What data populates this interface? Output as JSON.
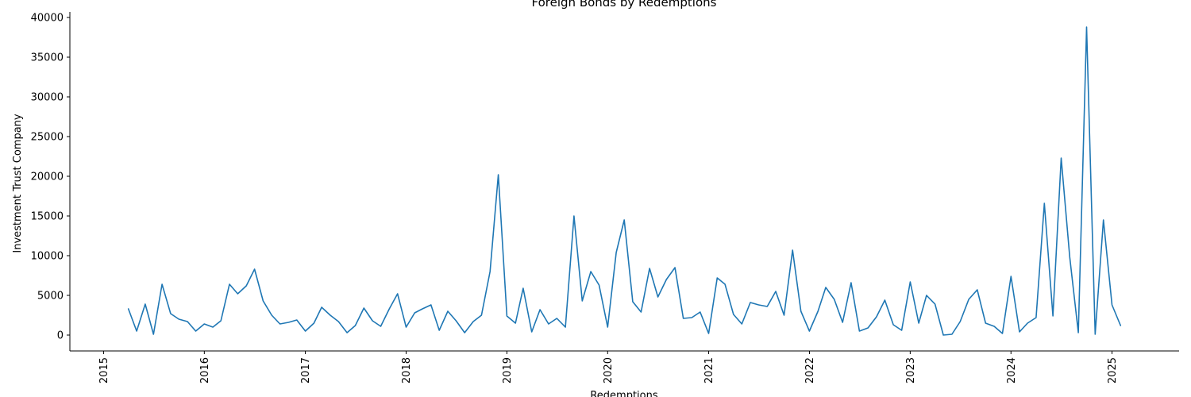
{
  "chart_data": {
    "type": "line",
    "title": "Foreign Bonds by Redemptions",
    "xlabel": "Redemptions",
    "ylabel": "Investment Trust Company",
    "xlim": [
      "2014-09-01",
      "2025-09-01"
    ],
    "ylim": [
      -2000,
      40700
    ],
    "x_ticks": [
      "2015",
      "2016",
      "2017",
      "2018",
      "2019",
      "2020",
      "2021",
      "2022",
      "2023",
      "2024",
      "2025"
    ],
    "y_ticks": [
      0,
      5000,
      10000,
      15000,
      20000,
      25000,
      30000,
      35000,
      40000
    ],
    "grid": false,
    "legend": "none",
    "series": [
      {
        "color": "#1f77b4",
        "x": [
          "2015-04",
          "2015-05",
          "2015-06",
          "2015-07",
          "2015-08",
          "2015-09",
          "2015-10",
          "2015-11",
          "2015-12",
          "2016-01",
          "2016-02",
          "2016-03",
          "2016-04",
          "2016-05",
          "2016-06",
          "2016-07",
          "2016-08",
          "2016-09",
          "2016-10",
          "2016-11",
          "2016-12",
          "2017-01",
          "2017-02",
          "2017-03",
          "2017-04",
          "2017-05",
          "2017-06",
          "2017-07",
          "2017-08",
          "2017-09",
          "2017-10",
          "2017-11",
          "2017-12",
          "2018-01",
          "2018-02",
          "2018-03",
          "2018-04",
          "2018-05",
          "2018-06",
          "2018-07",
          "2018-08",
          "2018-09",
          "2018-10",
          "2018-11",
          "2018-12",
          "2019-01",
          "2019-02",
          "2019-03",
          "2019-04",
          "2019-05",
          "2019-06",
          "2019-07",
          "2019-08",
          "2019-09",
          "2019-10",
          "2019-11",
          "2019-12",
          "2020-01",
          "2020-02",
          "2020-03",
          "2020-04",
          "2020-05",
          "2020-06",
          "2020-07",
          "2020-08",
          "2020-09",
          "2020-10",
          "2020-11",
          "2020-12",
          "2021-01",
          "2021-02",
          "2021-03",
          "2021-04",
          "2021-05",
          "2021-06",
          "2021-07",
          "2021-08",
          "2021-09",
          "2021-10",
          "2021-11",
          "2021-12",
          "2022-01",
          "2022-02",
          "2022-03",
          "2022-04",
          "2022-05",
          "2022-06",
          "2022-07",
          "2022-08",
          "2022-09",
          "2022-10",
          "2022-11",
          "2022-12",
          "2023-01",
          "2023-02",
          "2023-03",
          "2023-04",
          "2023-05",
          "2023-06",
          "2023-07",
          "2023-08",
          "2023-09",
          "2023-10",
          "2023-11",
          "2023-12",
          "2024-01",
          "2024-02",
          "2024-03",
          "2024-04",
          "2024-05",
          "2024-06",
          "2024-07",
          "2024-08",
          "2024-09",
          "2024-10",
          "2024-11",
          "2024-12",
          "2025-01",
          "2025-02"
        ],
        "values": [
          3300,
          500,
          3900,
          100,
          6400,
          2700,
          2000,
          1700,
          500,
          1400,
          1000,
          1800,
          6400,
          5200,
          6200,
          8300,
          4300,
          2500,
          1400,
          1600,
          1900,
          500,
          1500,
          3500,
          2500,
          1700,
          300,
          1200,
          3400,
          1800,
          1100,
          3300,
          5200,
          1000,
          2800,
          3300,
          3800,
          600,
          3000,
          1800,
          300,
          1700,
          2500,
          8000,
          20200,
          2400,
          1500,
          5900,
          400,
          3200,
          1400,
          2100,
          1000,
          15000,
          4300,
          8000,
          6300,
          1000,
          10400,
          14500,
          4200,
          2900,
          8400,
          4800,
          7000,
          8500,
          2100,
          2200,
          2900,
          200,
          7200,
          6400,
          2600,
          1400,
          4100,
          3800,
          3600,
          5500,
          2500,
          10700,
          3000,
          500,
          3000,
          6000,
          4500,
          1600,
          6600,
          500,
          900,
          2300,
          4400,
          1300,
          600,
          6700,
          1500,
          5000,
          3900,
          0,
          100,
          1700,
          4500,
          5700,
          1500,
          1100,
          200,
          7400,
          400,
          1500,
          2200,
          16600,
          2400,
          22300,
          9800,
          300,
          38800,
          100,
          14500,
          3800,
          1200
        ]
      }
    ]
  }
}
